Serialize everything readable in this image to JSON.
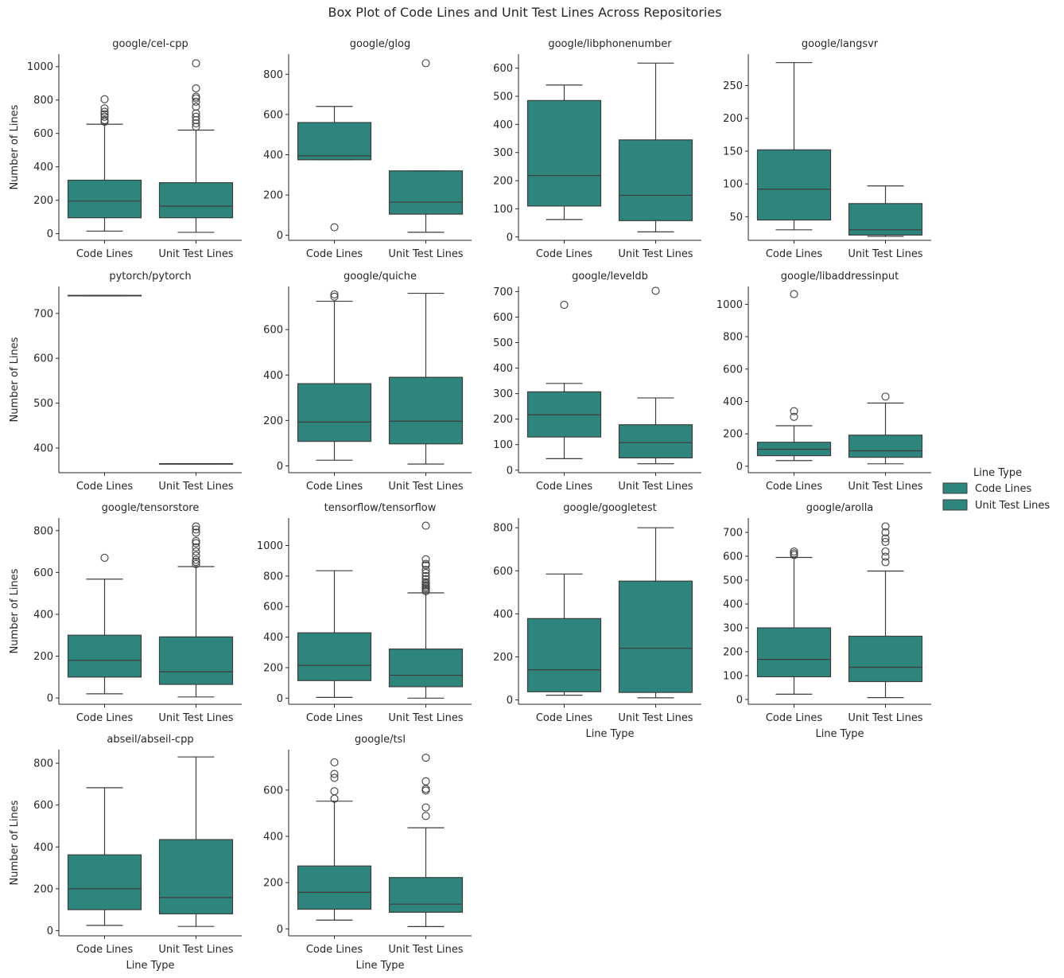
{
  "figure": {
    "title": "Box Plot of Code Lines and Unit Test Lines Across Repositories",
    "xlabel": "Line Type",
    "ylabel": "Number of Lines",
    "box_color": "#2e857d",
    "line_color": "#3d3d3d"
  },
  "legend": {
    "title": "Line Type",
    "placement": "right",
    "entries": [
      "Code Lines",
      "Unit Test Lines"
    ]
  },
  "chart_data": {
    "type": "box",
    "categories": [
      "Code Lines",
      "Unit Test Lines"
    ],
    "panels": [
      {
        "title": "google/cel-cpp",
        "ylim": [
          -40,
          1075
        ],
        "yticks": [
          0,
          200,
          400,
          600,
          800,
          1000
        ],
        "boxes": [
          {
            "q1": 95,
            "median": 195,
            "q3": 320,
            "whislo": 15,
            "whishi": 655,
            "fliers": [
              670,
              680,
              700,
              715,
              730,
              750,
              805
            ]
          },
          {
            "q1": 95,
            "median": 165,
            "q3": 305,
            "whislo": 8,
            "whishi": 620,
            "fliers": [
              640,
              660,
              680,
              700,
              720,
              760,
              790,
              810,
              820,
              870,
              1020
            ]
          }
        ]
      },
      {
        "title": "google/glog",
        "ylim": [
          -25,
          900
        ],
        "yticks": [
          0,
          200,
          400,
          600,
          800
        ],
        "boxes": [
          {
            "q1": 375,
            "median": 395,
            "q3": 560,
            "whislo": 375,
            "whishi": 640,
            "fliers": [
              40
            ]
          },
          {
            "q1": 105,
            "median": 165,
            "q3": 320,
            "whislo": 15,
            "whishi": 320,
            "fliers": [
              855
            ]
          }
        ]
      },
      {
        "title": "google/libphonenumber",
        "ylim": [
          -12,
          650
        ],
        "yticks": [
          0,
          100,
          200,
          300,
          400,
          500,
          600
        ],
        "boxes": [
          {
            "q1": 110,
            "median": 218,
            "q3": 485,
            "whislo": 62,
            "whishi": 540,
            "fliers": []
          },
          {
            "q1": 58,
            "median": 148,
            "q3": 345,
            "whislo": 18,
            "whishi": 618,
            "fliers": []
          }
        ]
      },
      {
        "title": "google/langsvr",
        "ylim": [
          14,
          298
        ],
        "yticks": [
          50,
          100,
          150,
          200,
          250
        ],
        "boxes": [
          {
            "q1": 45,
            "median": 92,
            "q3": 152,
            "whislo": 30,
            "whishi": 285,
            "fliers": []
          },
          {
            "q1": 22,
            "median": 30,
            "q3": 70,
            "whislo": 20,
            "whishi": 97,
            "fliers": []
          }
        ]
      },
      {
        "title": "pytorch/pytorch",
        "ylim": [
          345,
          760
        ],
        "yticks": [
          400,
          500,
          600,
          700
        ],
        "boxes": [
          {
            "q1": 740,
            "median": 740,
            "q3": 740,
            "whislo": 740,
            "whishi": 740,
            "fliers": []
          },
          {
            "q1": 365,
            "median": 365,
            "q3": 365,
            "whislo": 365,
            "whishi": 365,
            "fliers": []
          }
        ]
      },
      {
        "title": "google/quiche",
        "ylim": [
          -30,
          790
        ],
        "yticks": [
          0,
          200,
          400,
          600
        ],
        "boxes": [
          {
            "q1": 108,
            "median": 193,
            "q3": 362,
            "whislo": 25,
            "whishi": 725,
            "fliers": [
              745,
              755
            ]
          },
          {
            "q1": 97,
            "median": 197,
            "q3": 390,
            "whislo": 8,
            "whishi": 760,
            "fliers": []
          }
        ]
      },
      {
        "title": "google/leveldb",
        "ylim": [
          -10,
          720
        ],
        "yticks": [
          0,
          100,
          200,
          300,
          400,
          500,
          600,
          700
        ],
        "boxes": [
          {
            "q1": 130,
            "median": 217,
            "q3": 307,
            "whislo": 45,
            "whishi": 340,
            "fliers": [
              648
            ]
          },
          {
            "q1": 48,
            "median": 108,
            "q3": 178,
            "whislo": 25,
            "whishi": 283,
            "fliers": [
              703
            ]
          }
        ]
      },
      {
        "title": "google/libaddressinput",
        "ylim": [
          -40,
          1110
        ],
        "yticks": [
          0,
          200,
          400,
          600,
          800,
          1000
        ],
        "boxes": [
          {
            "q1": 65,
            "median": 105,
            "q3": 148,
            "whislo": 35,
            "whishi": 250,
            "fliers": [
              305,
              340,
              1063
            ]
          },
          {
            "q1": 55,
            "median": 95,
            "q3": 192,
            "whislo": 15,
            "whishi": 390,
            "fliers": [
              430
            ]
          }
        ]
      },
      {
        "title": "google/tensorstore",
        "ylim": [
          -30,
          860
        ],
        "yticks": [
          0,
          200,
          400,
          600,
          800
        ],
        "boxes": [
          {
            "q1": 100,
            "median": 180,
            "q3": 300,
            "whislo": 20,
            "whishi": 568,
            "fliers": [
              670
            ]
          },
          {
            "q1": 65,
            "median": 125,
            "q3": 292,
            "whislo": 5,
            "whishi": 628,
            "fliers": [
              640,
              650,
              660,
              680,
              700,
              720,
              740,
              750,
              790,
              805,
              820
            ]
          }
        ]
      },
      {
        "title": "tensorflow/tensorflow",
        "ylim": [
          -40,
          1180
        ],
        "yticks": [
          0,
          200,
          400,
          600,
          800,
          1000
        ],
        "boxes": [
          {
            "q1": 115,
            "median": 215,
            "q3": 428,
            "whislo": 5,
            "whishi": 835,
            "fliers": []
          },
          {
            "q1": 75,
            "median": 150,
            "q3": 322,
            "whislo": 0,
            "whishi": 690,
            "fliers": [
              700,
              710,
              720,
              730,
              740,
              750,
              760,
              780,
              800,
              820,
              840,
              870,
              880,
              910,
              1130
            ]
          }
        ]
      },
      {
        "title": "google/googletest",
        "ylim": [
          -20,
          845
        ],
        "yticks": [
          0,
          200,
          400,
          600,
          800
        ],
        "boxes": [
          {
            "q1": 38,
            "median": 140,
            "q3": 378,
            "whislo": 22,
            "whishi": 585,
            "fliers": []
          },
          {
            "q1": 35,
            "median": 240,
            "q3": 552,
            "whislo": 10,
            "whishi": 800,
            "fliers": []
          }
        ]
      },
      {
        "title": "google/arolla",
        "ylim": [
          -20,
          760
        ],
        "yticks": [
          0,
          100,
          200,
          300,
          400,
          500,
          600,
          700
        ],
        "boxes": [
          {
            "q1": 95,
            "median": 168,
            "q3": 300,
            "whislo": 22,
            "whishi": 595,
            "fliers": [
              605,
              612,
              620
            ]
          },
          {
            "q1": 75,
            "median": 135,
            "q3": 265,
            "whislo": 8,
            "whishi": 538,
            "fliers": [
              575,
              598,
              620,
              660,
              675,
              700,
              725
            ]
          }
        ]
      },
      {
        "title": "abseil/abseil-cpp",
        "ylim": [
          -25,
          865
        ],
        "yticks": [
          0,
          200,
          400,
          600,
          800
        ],
        "boxes": [
          {
            "q1": 100,
            "median": 200,
            "q3": 362,
            "whislo": 25,
            "whishi": 683,
            "fliers": []
          },
          {
            "q1": 80,
            "median": 158,
            "q3": 435,
            "whislo": 20,
            "whishi": 830,
            "fliers": []
          }
        ]
      },
      {
        "title": "google/tsl",
        "ylim": [
          -30,
          775
        ],
        "yticks": [
          0,
          200,
          400,
          600
        ],
        "boxes": [
          {
            "q1": 85,
            "median": 158,
            "q3": 272,
            "whislo": 38,
            "whishi": 552,
            "fliers": [
              563,
              595,
              653,
              670,
              720
            ]
          },
          {
            "q1": 72,
            "median": 107,
            "q3": 222,
            "whislo": 10,
            "whishi": 437,
            "fliers": [
              488,
              525,
              598,
              605,
              638,
              740
            ]
          }
        ]
      }
    ]
  }
}
